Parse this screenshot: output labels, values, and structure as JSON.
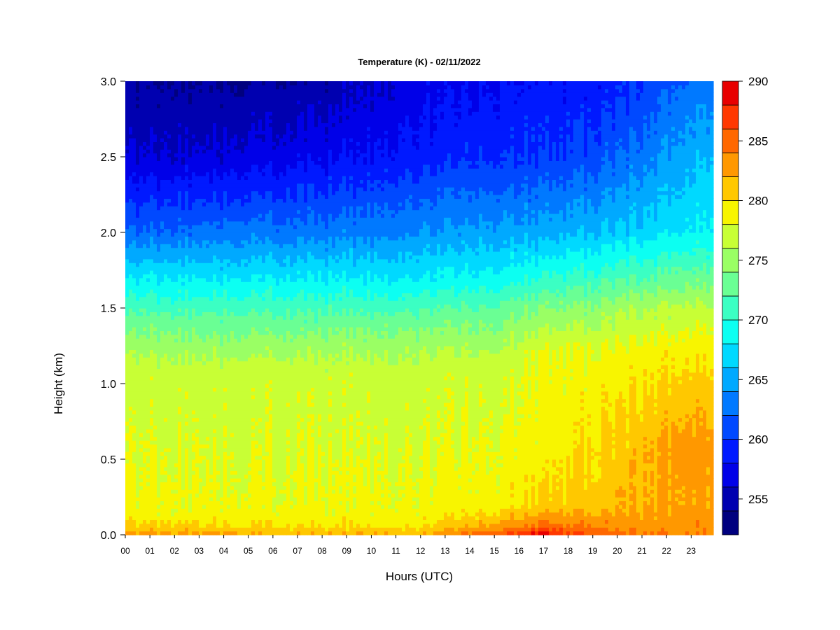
{
  "chart_data": {
    "type": "heatmap",
    "title": "Temperature (K) - 02/11/2022",
    "xlabel": "Hours (UTC)",
    "ylabel": "Height (km)",
    "x_ticks": [
      "00",
      "01",
      "02",
      "03",
      "04",
      "05",
      "06",
      "07",
      "08",
      "09",
      "10",
      "11",
      "12",
      "13",
      "14",
      "15",
      "16",
      "17",
      "18",
      "19",
      "20",
      "21",
      "22",
      "23"
    ],
    "x_range": [
      0,
      23.9
    ],
    "y_ticks": [
      "0.0",
      "0.5",
      "1.0",
      "1.5",
      "2.0",
      "2.5",
      "3.0"
    ],
    "y_range": [
      0,
      3.0
    ],
    "colorbar": {
      "ticks": [
        "255",
        "260",
        "265",
        "270",
        "275",
        "280",
        "285",
        "290"
      ],
      "range": [
        252,
        290
      ],
      "levels": [
        252,
        254,
        256,
        258,
        260,
        262,
        264,
        266,
        268,
        270,
        272,
        274,
        276,
        278,
        280,
        282,
        284,
        286,
        288,
        290
      ],
      "colors": [
        "#00007f",
        "#0000b0",
        "#0000e8",
        "#0019ff",
        "#0049ff",
        "#0079ff",
        "#00a9ff",
        "#00d9ff",
        "#0cfff2",
        "#3bffc3",
        "#6aff94",
        "#9aff64",
        "#c8ff35",
        "#f8f500",
        "#ffc800",
        "#ff9800",
        "#ff6800",
        "#ff3800",
        "#e80000",
        "#a60000"
      ]
    },
    "profiles": [
      {
        "hour": 0,
        "heights": [
          0,
          0.05,
          0.15,
          1.1,
          1.4,
          1.7,
          2.0,
          2.5,
          3.0
        ],
        "temps": [
          283,
          281,
          278.5,
          277,
          273,
          268,
          262,
          256,
          254
        ]
      },
      {
        "hour": 4,
        "heights": [
          0,
          0.05,
          0.15,
          1.1,
          1.4,
          1.7,
          2.0,
          2.5,
          3.0
        ],
        "temps": [
          282.5,
          280.5,
          278.5,
          277,
          273,
          268,
          263,
          256.5,
          254
        ]
      },
      {
        "hour": 8,
        "heights": [
          0,
          0.05,
          0.15,
          1.1,
          1.4,
          1.7,
          2.0,
          2.5,
          3.0
        ],
        "temps": [
          282,
          280,
          278.5,
          277,
          273,
          268,
          263,
          257.5,
          254.5
        ]
      },
      {
        "hour": 12,
        "heights": [
          0,
          0.05,
          0.15,
          1.1,
          1.4,
          1.7,
          2.0,
          2.5,
          3.0
        ],
        "temps": [
          282,
          280,
          278.5,
          277,
          273.5,
          268,
          264,
          259,
          257
        ]
      },
      {
        "hour": 15,
        "heights": [
          0,
          0.05,
          0.2,
          1.1,
          1.4,
          1.7,
          2.0,
          2.5,
          3.0
        ],
        "temps": [
          286,
          283,
          279,
          277.5,
          274,
          269,
          265,
          260,
          258
        ]
      },
      {
        "hour": 17,
        "heights": [
          0,
          0.05,
          0.2,
          0.6,
          1.2,
          1.5,
          1.7,
          2.0,
          2.5,
          3.0
        ],
        "temps": [
          289,
          285,
          280.5,
          279,
          278,
          274,
          270,
          265,
          260,
          258.5
        ]
      },
      {
        "hour": 19,
        "heights": [
          0,
          0.05,
          0.2,
          0.6,
          1.2,
          1.5,
          1.7,
          2.0,
          2.5,
          3.0
        ],
        "temps": [
          286,
          284,
          281,
          280,
          278.5,
          274.5,
          271,
          266,
          261,
          258.5
        ]
      },
      {
        "hour": 21,
        "heights": [
          0,
          0.05,
          0.2,
          0.6,
          1.2,
          1.5,
          1.7,
          2.0,
          2.5,
          3.0
        ],
        "temps": [
          284,
          283,
          282,
          281.5,
          279,
          276,
          272,
          267,
          263,
          260
        ]
      },
      {
        "hour": 22.5,
        "heights": [
          0,
          0.05,
          0.2,
          0.6,
          1.2,
          1.5,
          1.7,
          2.0,
          2.5,
          3.0
        ],
        "temps": [
          284,
          283.5,
          282.5,
          283,
          279.5,
          276.5,
          273,
          268,
          265,
          262
        ]
      },
      {
        "hour": 23.9,
        "heights": [
          0,
          0.05,
          0.2,
          0.6,
          1.2,
          1.5,
          1.7,
          2.0,
          2.5,
          3.0
        ],
        "temps": [
          284,
          283.5,
          282.5,
          283,
          279.5,
          276.5,
          273,
          268.5,
          266,
          263
        ]
      }
    ]
  }
}
